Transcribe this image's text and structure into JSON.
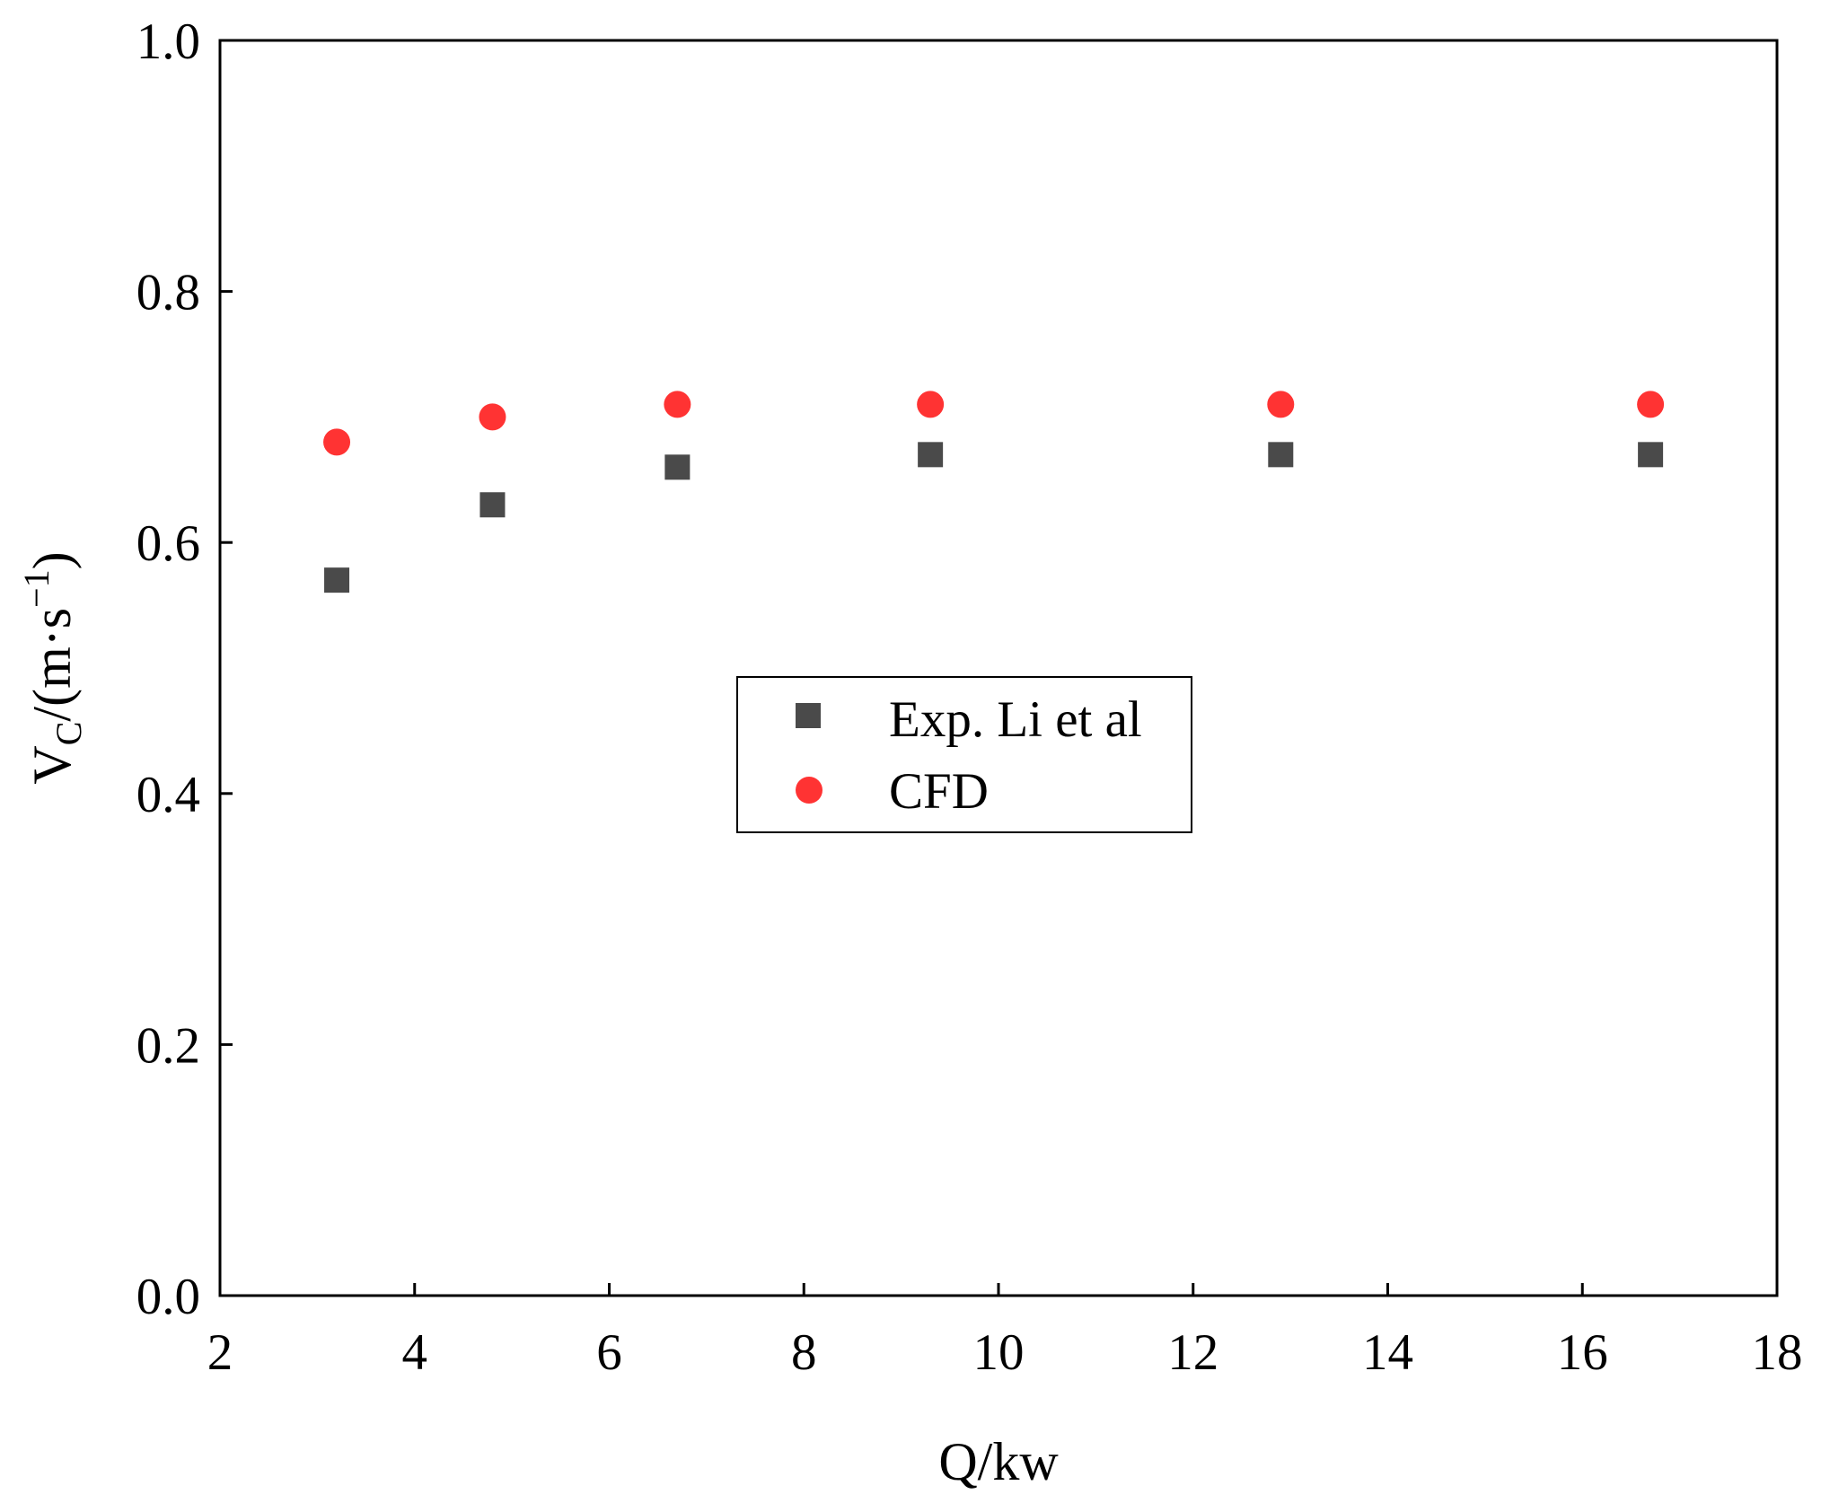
{
  "chart_data": {
    "type": "scatter",
    "xlabel": "Q/kw",
    "ylabel": {
      "main": "V",
      "sub": "C",
      "rest": "/(m·s",
      "sup": "−1",
      "close": ")"
    },
    "xlim": [
      2,
      18
    ],
    "ylim": [
      0.0,
      1.0
    ],
    "xticks": [
      "2",
      "4",
      "6",
      "8",
      "10",
      "12",
      "14",
      "16",
      "18"
    ],
    "yticks": [
      "0.0",
      "0.2",
      "0.4",
      "0.6",
      "0.8",
      "1.0"
    ],
    "grid": false,
    "legend_position": "center",
    "series": [
      {
        "name": "Exp. Li et al",
        "marker": "square",
        "color": "#4a4a4a",
        "points": [
          {
            "x": 3.2,
            "y": 0.57
          },
          {
            "x": 4.8,
            "y": 0.63
          },
          {
            "x": 6.7,
            "y": 0.66
          },
          {
            "x": 9.3,
            "y": 0.67
          },
          {
            "x": 12.9,
            "y": 0.67
          },
          {
            "x": 16.7,
            "y": 0.67
          }
        ]
      },
      {
        "name": "CFD",
        "marker": "circle",
        "color": "#ff3333",
        "points": [
          {
            "x": 3.2,
            "y": 0.68
          },
          {
            "x": 4.8,
            "y": 0.7
          },
          {
            "x": 6.7,
            "y": 0.71
          },
          {
            "x": 9.3,
            "y": 0.71
          },
          {
            "x": 12.9,
            "y": 0.71
          },
          {
            "x": 16.7,
            "y": 0.71
          }
        ]
      }
    ]
  }
}
